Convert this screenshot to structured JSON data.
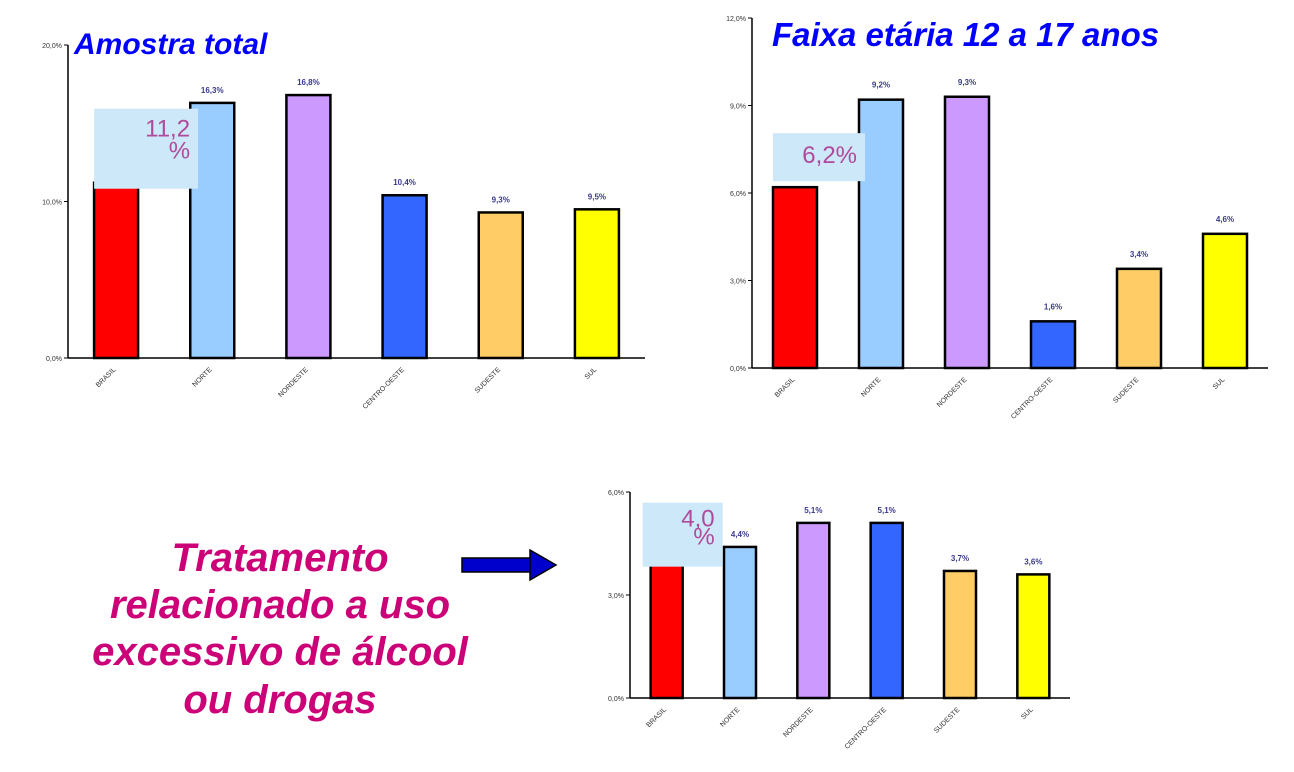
{
  "colors": {
    "title": "#0000ff",
    "headline": "#cc0077",
    "arrow": "#0000cc",
    "callout_fill": "#cde8f8",
    "callout_text": "#b04a9a",
    "bar_colors": [
      "#ff0000",
      "#99ccff",
      "#cc99ff",
      "#3366ff",
      "#ffcc66",
      "#ffff00"
    ]
  },
  "headline": {
    "lines": [
      "Tratamento",
      "relacionado a uso",
      "excessivo de álcool",
      "ou drogas"
    ]
  },
  "arrow_icon": "right-arrow-icon",
  "chart_data": [
    {
      "type": "bar",
      "title": "Amostra total",
      "categories": [
        "BRASIL",
        "NORTE",
        "NORDESTE",
        "CENTRO-OESTE",
        "SUDESTE",
        "SUL"
      ],
      "values": [
        11.2,
        16.3,
        16.8,
        10.4,
        9.3,
        9.5
      ],
      "data_labels": [
        "",
        "16,3%",
        "16,8%",
        "10,4%",
        "9,3%",
        "9,5%"
      ],
      "callout": {
        "lines": [
          "11,2",
          "%"
        ],
        "category_index": 0
      },
      "yticks": [
        "0,0%",
        "10,0%",
        "20,0%"
      ],
      "ylim": [
        0,
        20
      ],
      "grid": false
    },
    {
      "type": "bar",
      "title": "Faixa etária 12 a 17 anos",
      "categories": [
        "BRASIL",
        "NORTE",
        "NORDESTE",
        "CENTRO-OESTE",
        "SUDESTE",
        "SUL"
      ],
      "values": [
        6.2,
        9.2,
        9.3,
        1.6,
        3.4,
        4.6
      ],
      "data_labels": [
        "",
        "9,2%",
        "9,3%",
        "1,6%",
        "3,4%",
        "4,6%"
      ],
      "callout": {
        "lines": [
          "6,2%"
        ],
        "category_index": 0
      },
      "yticks": [
        "0,0%",
        "3,0%",
        "6,0%",
        "9,0%",
        "12,0%"
      ],
      "ylim": [
        0,
        12
      ],
      "grid": false
    },
    {
      "type": "bar",
      "title": "",
      "categories": [
        "BRASIL",
        "NORTE",
        "NORDESTE",
        "CENTRO-OESTE",
        "SUDESTE",
        "SUL"
      ],
      "values": [
        4.0,
        4.4,
        5.1,
        5.1,
        3.7,
        3.6
      ],
      "data_labels": [
        "",
        "4,4%",
        "5,1%",
        "5,1%",
        "3,7%",
        "3,6%"
      ],
      "callout": {
        "lines": [
          "4,0",
          "%"
        ],
        "category_index": 0
      },
      "yticks": [
        "0,0%",
        "3,0%",
        "6,0%"
      ],
      "ylim": [
        0,
        6
      ],
      "grid": false
    }
  ]
}
